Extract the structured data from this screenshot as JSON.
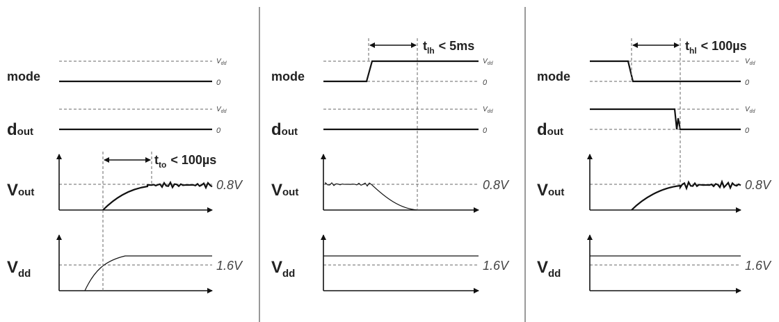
{
  "panels": [
    {
      "labels": {
        "mode": "mode",
        "dout": {
          "base": "d",
          "sub": "out"
        },
        "vout": {
          "base": "V",
          "sub": "out"
        },
        "vdd": {
          "base": "V",
          "sub": "dd"
        }
      },
      "levels": {
        "mode_high": {
          "base": "V",
          "sub": "dd"
        },
        "mode_low": "0",
        "dout_high": {
          "base": "V",
          "sub": "dd"
        },
        "dout_low": "0",
        "vout": "0.8V",
        "vdd": "1.6V"
      },
      "timing": {
        "base": "t",
        "sub": "to",
        "rest": "< 100µs"
      }
    },
    {
      "labels": {
        "mode": "mode",
        "dout": {
          "base": "d",
          "sub": "out"
        },
        "vout": {
          "base": "V",
          "sub": "out"
        },
        "vdd": {
          "base": "V",
          "sub": "dd"
        }
      },
      "levels": {
        "mode_high": {
          "base": "V",
          "sub": "dd"
        },
        "mode_low": "0",
        "dout_high": {
          "base": "V",
          "sub": "dd"
        },
        "dout_low": "0",
        "vout": "0.8V",
        "vdd": "1.6V"
      },
      "timing": {
        "base": "t",
        "sub": "lh",
        "rest": "< 5ms"
      }
    },
    {
      "labels": {
        "mode": "mode",
        "dout": {
          "base": "d",
          "sub": "out"
        },
        "vout": {
          "base": "V",
          "sub": "out"
        },
        "vdd": {
          "base": "V",
          "sub": "dd"
        }
      },
      "levels": {
        "mode_high": {
          "base": "V",
          "sub": "dd"
        },
        "mode_low": "0",
        "dout_high": {
          "base": "V",
          "sub": "dd"
        },
        "dout_low": "0",
        "vout": "0.8V",
        "vdd": "1.6V"
      },
      "timing": {
        "base": "t",
        "sub": "hl",
        "rest": "< 100µs"
      }
    }
  ]
}
